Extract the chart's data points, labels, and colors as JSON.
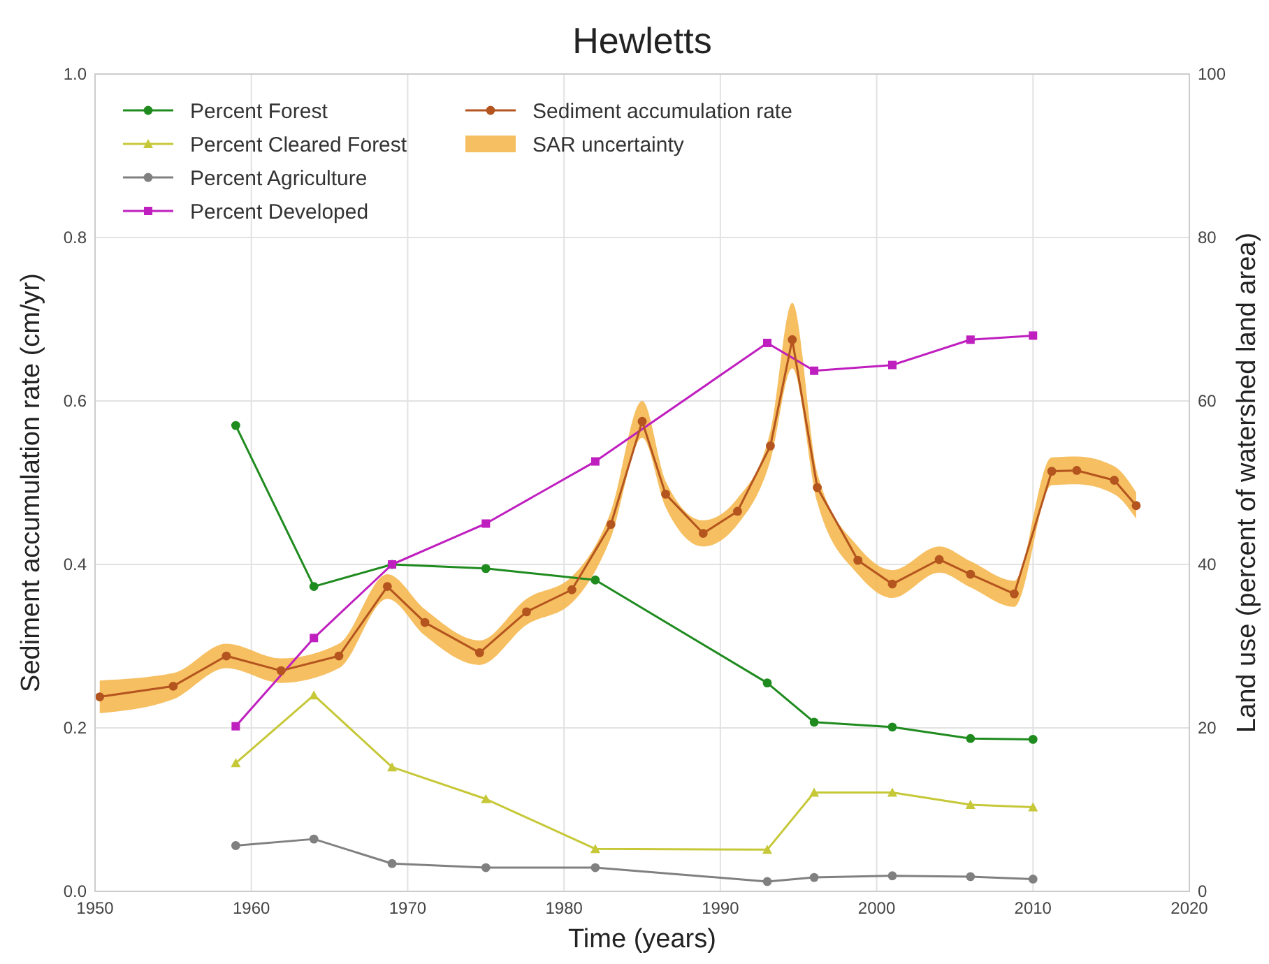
{
  "chart_data": {
    "type": "line",
    "title": "Hewletts",
    "xlabel": "Time (years)",
    "ylabel": "Sediment accumulation rate (cm/yr)",
    "y2label": "Land use (percent of watershed land area)",
    "xlim": [
      1950,
      2020
    ],
    "xticks": [
      1950,
      1960,
      1970,
      1980,
      1990,
      2000,
      2010,
      2020
    ],
    "ylim": [
      0,
      1
    ],
    "yticks": [
      {
        "value": 0,
        "label": "0.0"
      },
      {
        "value": 0.2,
        "label": "0.2"
      },
      {
        "value": 0.4,
        "label": "0.4"
      },
      {
        "value": 0.6,
        "label": "0.6"
      },
      {
        "value": 0.8,
        "label": "0.8"
      },
      {
        "value": 1,
        "label": "1.0"
      }
    ],
    "y2lim": [
      0,
      100
    ],
    "y2ticks": [
      0,
      20,
      40,
      60,
      80,
      100
    ],
    "grid": true,
    "legend": "top left",
    "line_style": "solid",
    "series": [
      {
        "name": "Percent Forest",
        "color": "#1f8b1f",
        "axis": "y2",
        "marker": "circle",
        "x": [
          1959,
          1964,
          1969,
          1975,
          1982,
          1993,
          1996,
          2001,
          2006,
          2010
        ],
        "values": [
          57.0,
          37.3,
          40.0,
          39.5,
          38.1,
          25.5,
          20.7,
          20.1,
          18.7,
          18.6
        ]
      },
      {
        "name": "Percent Cleared Forest",
        "color": "#c6c838",
        "axis": "y2",
        "marker": "triangle",
        "x": [
          1959,
          1964,
          1969,
          1975,
          1982,
          1993,
          1996,
          2001,
          2006,
          2010
        ],
        "values": [
          15.7,
          24.0,
          15.2,
          11.3,
          5.2,
          5.1,
          12.1,
          12.1,
          10.6,
          10.3
        ]
      },
      {
        "name": "Percent Agriculture",
        "color": "#808080",
        "axis": "y2",
        "marker": "circle",
        "x": [
          1959,
          1964,
          1969,
          1975,
          1982,
          1993,
          1996,
          2001,
          2006,
          2010
        ],
        "values": [
          5.6,
          6.4,
          3.4,
          2.9,
          2.9,
          1.2,
          1.7,
          1.9,
          1.8,
          1.5
        ]
      },
      {
        "name": "Percent Developed",
        "color": "#bf1fbf",
        "axis": "y2",
        "marker": "square",
        "x": [
          1959,
          1964,
          1969,
          1975,
          1982,
          1993,
          1996,
          2001,
          2006,
          2010
        ],
        "values": [
          20.2,
          31.0,
          40.0,
          45.0,
          52.6,
          67.1,
          63.7,
          64.4,
          67.5,
          68.0
        ]
      },
      {
        "name": "Sediment accumulation rate",
        "color": "#b4541e",
        "marker": "circle",
        "x": [
          1950.3,
          1955.0,
          1958.4,
          1961.9,
          1965.6,
          1968.7,
          1971.1,
          1974.6,
          1977.6,
          1980.5,
          1983.0,
          1985.0,
          1986.5,
          1988.9,
          1991.1,
          1993.2,
          1994.6,
          1996.2,
          1998.8,
          2001.0,
          2004.0,
          2006.0,
          2008.8,
          2011.2,
          2012.8,
          2015.2,
          2016.6
        ],
        "values": [
          0.238,
          0.251,
          0.288,
          0.27,
          0.288,
          0.373,
          0.329,
          0.292,
          0.342,
          0.369,
          0.449,
          0.575,
          0.486,
          0.438,
          0.465,
          0.545,
          0.675,
          0.494,
          0.405,
          0.376,
          0.406,
          0.388,
          0.364,
          0.514,
          0.515,
          0.503,
          0.472
        ]
      },
      {
        "name": "SAR uncertainty",
        "type": "area",
        "color": "#f5b445",
        "x": [
          1950.3,
          1955.0,
          1958.4,
          1961.9,
          1965.6,
          1968.7,
          1971.1,
          1974.6,
          1977.6,
          1980.5,
          1983.0,
          1985.0,
          1986.5,
          1988.9,
          1991.1,
          1993.2,
          1994.6,
          1996.2,
          1998.8,
          2001.0,
          2004.0,
          2006.0,
          2008.8,
          2011.2,
          2012.8,
          2015.2,
          2016.6
        ],
        "values": [
          null,
          null,
          null,
          null,
          null,
          null,
          null,
          null,
          null,
          null,
          null,
          null,
          null,
          null,
          null,
          null,
          null,
          null,
          null,
          null,
          null,
          null,
          null,
          null,
          null,
          null,
          null
        ],
        "lower": [
          0.218,
          0.235,
          0.273,
          0.255,
          0.273,
          0.358,
          0.313,
          0.277,
          0.326,
          0.353,
          0.433,
          0.555,
          0.47,
          0.422,
          0.449,
          0.527,
          0.64,
          0.476,
          0.388,
          0.359,
          0.39,
          0.372,
          0.348,
          0.497,
          0.498,
          0.486,
          0.456
        ],
        "upper": [
          0.258,
          0.267,
          0.303,
          0.285,
          0.303,
          0.388,
          0.345,
          0.307,
          0.358,
          0.385,
          0.465,
          0.6,
          0.502,
          0.454,
          0.481,
          0.563,
          0.72,
          0.512,
          0.422,
          0.393,
          0.422,
          0.404,
          0.38,
          0.531,
          0.532,
          0.52,
          0.488
        ]
      }
    ]
  }
}
